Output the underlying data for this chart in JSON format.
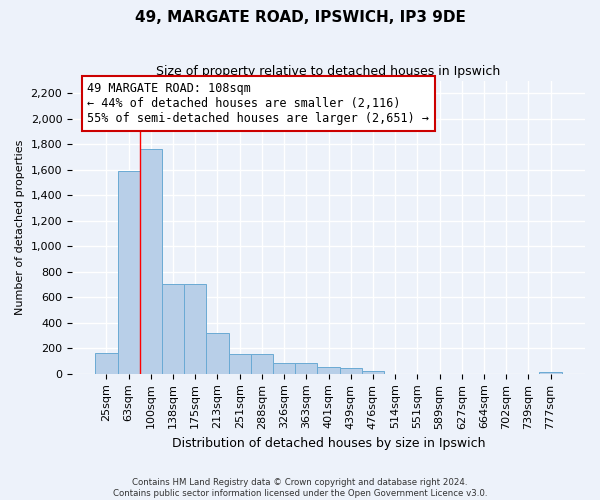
{
  "title": "49, MARGATE ROAD, IPSWICH, IP3 9DE",
  "subtitle": "Size of property relative to detached houses in Ipswich",
  "xlabel": "Distribution of detached houses by size in Ipswich",
  "ylabel": "Number of detached properties",
  "bar_labels": [
    "25sqm",
    "63sqm",
    "100sqm",
    "138sqm",
    "175sqm",
    "213sqm",
    "251sqm",
    "288sqm",
    "326sqm",
    "363sqm",
    "401sqm",
    "439sqm",
    "476sqm",
    "514sqm",
    "551sqm",
    "589sqm",
    "627sqm",
    "664sqm",
    "702sqm",
    "739sqm",
    "777sqm"
  ],
  "bar_values": [
    160,
    1590,
    1760,
    705,
    705,
    320,
    155,
    155,
    85,
    85,
    50,
    45,
    20,
    0,
    0,
    0,
    0,
    0,
    0,
    0,
    15
  ],
  "bar_color": "#b8cfe8",
  "bar_edge_color": "#6aaad4",
  "annotation_text": "49 MARGATE ROAD: 108sqm\n← 44% of detached houses are smaller (2,116)\n55% of semi-detached houses are larger (2,651) →",
  "annotation_box_color": "#ffffff",
  "annotation_box_edge_color": "#cc0000",
  "redline_bar_index": 2,
  "ylim": [
    0,
    2300
  ],
  "yticks": [
    0,
    200,
    400,
    600,
    800,
    1000,
    1200,
    1400,
    1600,
    1800,
    2000,
    2200
  ],
  "footer_line1": "Contains HM Land Registry data © Crown copyright and database right 2024.",
  "footer_line2": "Contains public sector information licensed under the Open Government Licence v3.0.",
  "background_color": "#edf2fa",
  "plot_background": "#edf2fa",
  "grid_color": "#ffffff",
  "title_fontsize": 11,
  "subtitle_fontsize": 9,
  "xlabel_fontsize": 9,
  "ylabel_fontsize": 8,
  "tick_fontsize": 8
}
